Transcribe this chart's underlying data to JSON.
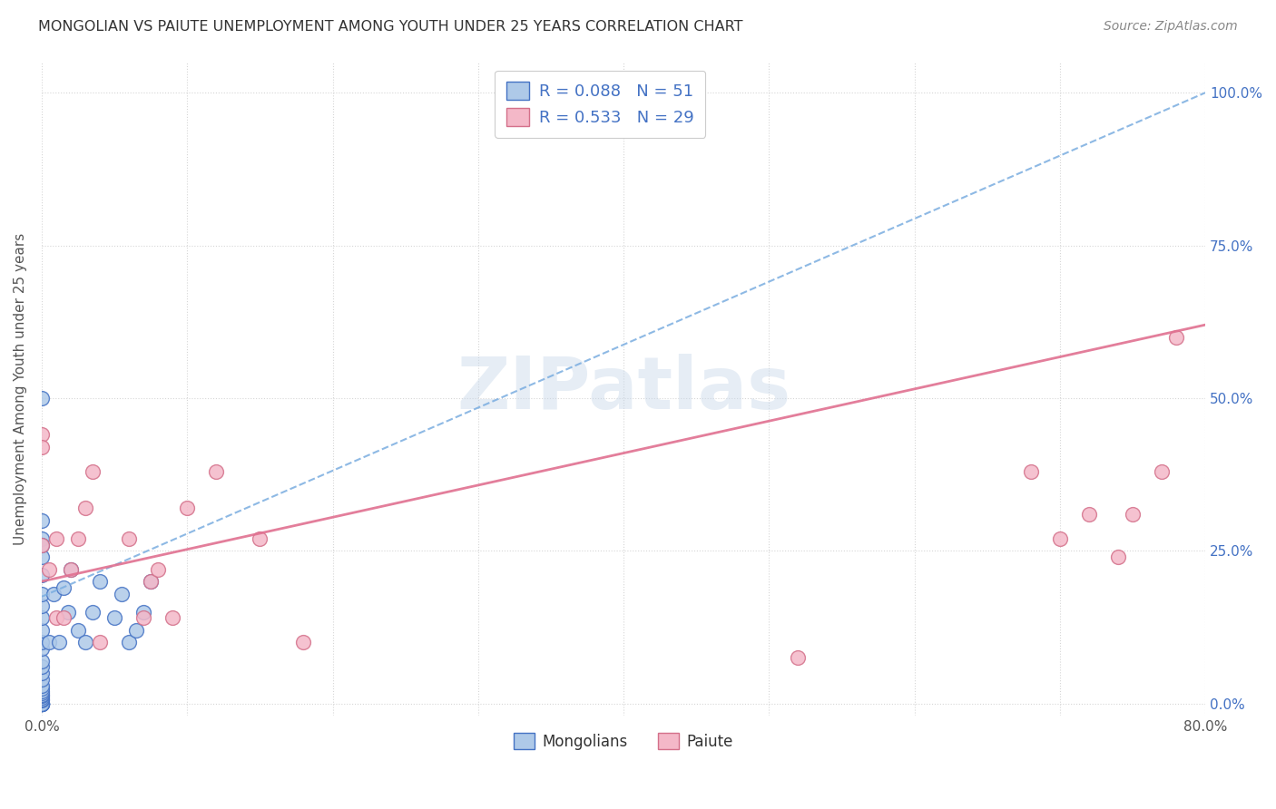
{
  "title": "MONGOLIAN VS PAIUTE UNEMPLOYMENT AMONG YOUTH UNDER 25 YEARS CORRELATION CHART",
  "source": "Source: ZipAtlas.com",
  "ylabel": "Unemployment Among Youth under 25 years",
  "xlim": [
    0.0,
    0.8
  ],
  "ylim": [
    -0.02,
    1.05
  ],
  "xtick_positions": [
    0.0,
    0.1,
    0.2,
    0.3,
    0.4,
    0.5,
    0.6,
    0.7,
    0.8
  ],
  "xtick_labels": [
    "0.0%",
    "",
    "",
    "",
    "",
    "",
    "",
    "",
    "80.0%"
  ],
  "ytick_labels_right": [
    "0.0%",
    "25.0%",
    "50.0%",
    "75.0%",
    "100.0%"
  ],
  "ytick_positions_right": [
    0.0,
    0.25,
    0.5,
    0.75,
    1.0
  ],
  "mongolian_R": 0.088,
  "mongolian_N": 51,
  "paiute_R": 0.533,
  "paiute_N": 29,
  "mongolian_color": "#aec9e8",
  "mongolian_edge": "#4472c4",
  "paiute_color": "#f4b8c8",
  "paiute_edge": "#d4708a",
  "trend_mongolian_color": "#7aade0",
  "trend_paiute_color": "#e07090",
  "watermark": "ZIPatlas",
  "mongolian_trend_x": [
    0.0,
    0.8
  ],
  "mongolian_trend_y": [
    0.175,
    1.0
  ],
  "paiute_trend_x": [
    0.0,
    0.8
  ],
  "paiute_trend_y": [
    0.2,
    0.62
  ],
  "mongolian_x": [
    0.0,
    0.0,
    0.0,
    0.0,
    0.0,
    0.0,
    0.0,
    0.0,
    0.0,
    0.0,
    0.0,
    0.0,
    0.0,
    0.0,
    0.0,
    0.0,
    0.0,
    0.0,
    0.0,
    0.0,
    0.0,
    0.0,
    0.0,
    0.0,
    0.0,
    0.0,
    0.0,
    0.0,
    0.0,
    0.0,
    0.0,
    0.0,
    0.0,
    0.005,
    0.008,
    0.012,
    0.015,
    0.018,
    0.02,
    0.025,
    0.03,
    0.035,
    0.04,
    0.05,
    0.055,
    0.06,
    0.065,
    0.07,
    0.075,
    0.0,
    0.0
  ],
  "mongolian_y": [
    0.0,
    0.0,
    0.0,
    0.0,
    0.0,
    0.0,
    0.0,
    0.0,
    0.0,
    0.0,
    0.005,
    0.007,
    0.01,
    0.013,
    0.015,
    0.018,
    0.02,
    0.025,
    0.03,
    0.04,
    0.05,
    0.06,
    0.07,
    0.09,
    0.1,
    0.12,
    0.14,
    0.16,
    0.18,
    0.21,
    0.24,
    0.27,
    0.5,
    0.1,
    0.18,
    0.1,
    0.19,
    0.15,
    0.22,
    0.12,
    0.1,
    0.15,
    0.2,
    0.14,
    0.18,
    0.1,
    0.12,
    0.15,
    0.2,
    0.26,
    0.3
  ],
  "paiute_x": [
    0.0,
    0.0,
    0.0,
    0.005,
    0.01,
    0.01,
    0.015,
    0.02,
    0.025,
    0.03,
    0.035,
    0.04,
    0.06,
    0.07,
    0.075,
    0.08,
    0.09,
    0.1,
    0.12,
    0.15,
    0.18,
    0.52,
    0.68,
    0.7,
    0.72,
    0.74,
    0.75,
    0.77,
    0.78
  ],
  "paiute_y": [
    0.44,
    0.42,
    0.26,
    0.22,
    0.27,
    0.14,
    0.14,
    0.22,
    0.27,
    0.32,
    0.38,
    0.1,
    0.27,
    0.14,
    0.2,
    0.22,
    0.14,
    0.32,
    0.38,
    0.27,
    0.1,
    0.075,
    0.38,
    0.27,
    0.31,
    0.24,
    0.31,
    0.38,
    0.6
  ]
}
